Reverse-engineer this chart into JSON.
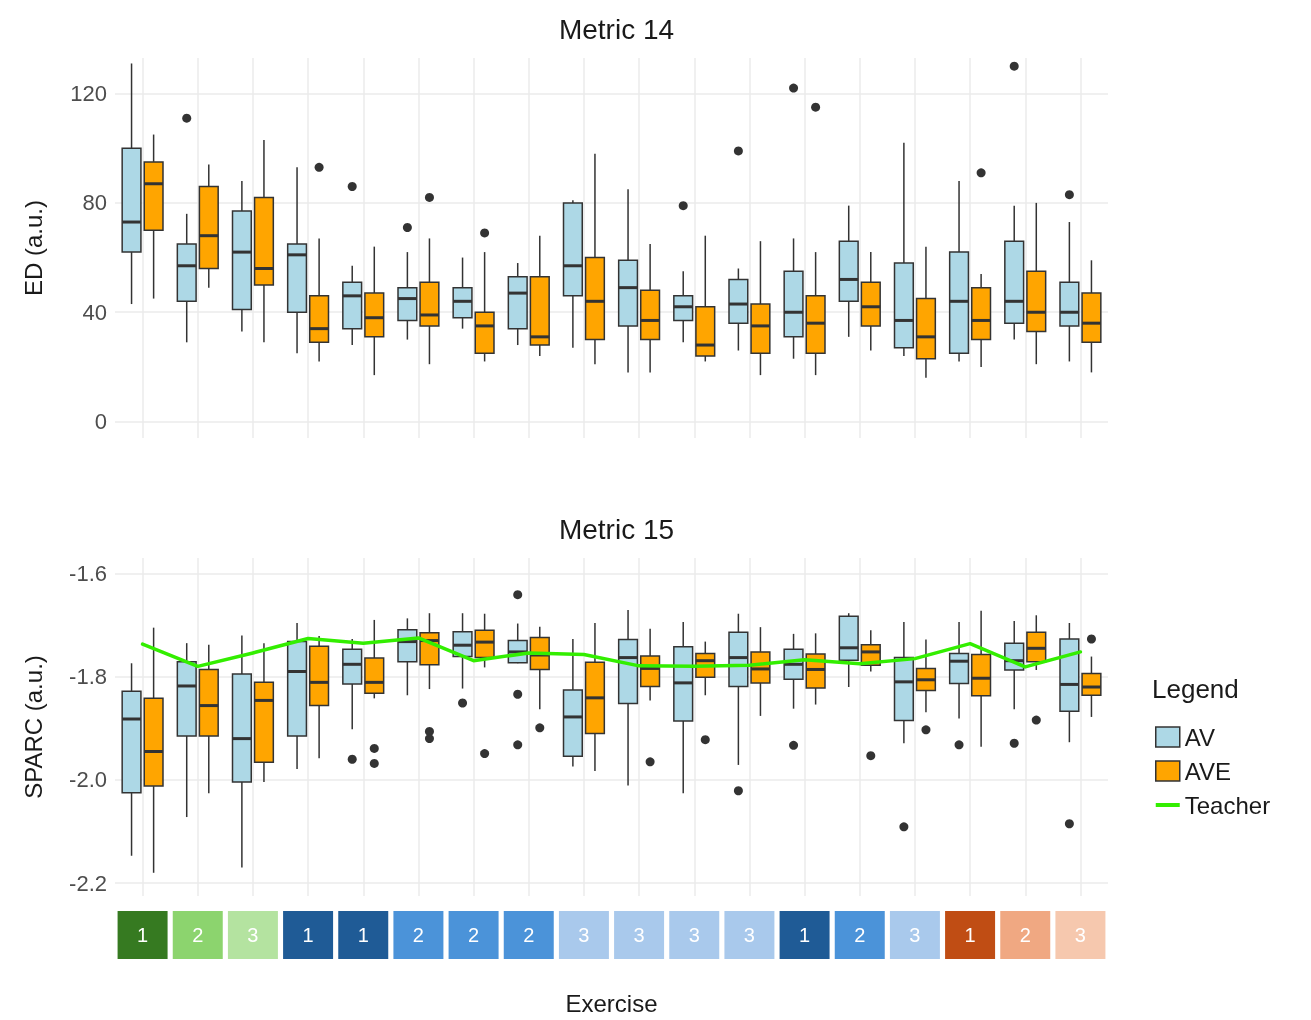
{
  "chart_data": [
    {
      "type": "box",
      "title": "Metric 14",
      "ylabel": "ED (a.u.)",
      "categories": [
        "1",
        "2",
        "3",
        "1",
        "1",
        "2",
        "2",
        "2",
        "3",
        "3",
        "3",
        "3",
        "1",
        "2",
        "3",
        "1",
        "2",
        "3"
      ],
      "ylim": [
        -6,
        133
      ],
      "yticks": [
        0,
        40,
        80,
        120
      ],
      "grid": true,
      "tick_labels": "y",
      "series": [
        {
          "color": "#add8e6",
          "boxes": [
            {
              "low": 43,
              "q1": 62,
              "median": 73,
              "q3": 100,
              "high": 131
            },
            {
              "low": 29,
              "q1": 44,
              "median": 57,
              "q3": 65,
              "high": 76,
              "outliers": [
                111
              ]
            },
            {
              "low": 33,
              "q1": 41,
              "median": 62,
              "q3": 77,
              "high": 88
            },
            {
              "low": 25,
              "q1": 40,
              "median": 61,
              "q3": 65,
              "high": 93
            },
            {
              "low": 28,
              "q1": 34,
              "median": 46,
              "q3": 51,
              "high": 57,
              "outliers": [
                86
              ]
            },
            {
              "low": 30,
              "q1": 37,
              "median": 45,
              "q3": 49,
              "high": 62,
              "outliers": [
                71
              ]
            },
            {
              "low": 34,
              "q1": 38,
              "median": 44,
              "q3": 49,
              "high": 60
            },
            {
              "low": 28,
              "q1": 34,
              "median": 47,
              "q3": 53,
              "high": 58
            },
            {
              "low": 27,
              "q1": 46,
              "median": 57,
              "q3": 80,
              "high": 81
            },
            {
              "low": 18,
              "q1": 35,
              "median": 49,
              "q3": 59,
              "high": 85
            },
            {
              "low": 29,
              "q1": 37,
              "median": 42,
              "q3": 46,
              "high": 55,
              "outliers": [
                79
              ]
            },
            {
              "low": 26,
              "q1": 36,
              "median": 43,
              "q3": 52,
              "high": 56,
              "outliers": [
                99
              ]
            },
            {
              "low": 23,
              "q1": 31,
              "median": 40,
              "q3": 55,
              "high": 67,
              "outliers": [
                122
              ]
            },
            {
              "low": 31,
              "q1": 44,
              "median": 52,
              "q3": 66,
              "high": 79
            },
            {
              "low": 24,
              "q1": 27,
              "median": 37,
              "q3": 58,
              "high": 102
            },
            {
              "low": 22,
              "q1": 25,
              "median": 44,
              "q3": 62,
              "high": 88
            },
            {
              "low": 30,
              "q1": 36,
              "median": 44,
              "q3": 66,
              "high": 79,
              "outliers": [
                130
              ]
            },
            {
              "low": 22,
              "q1": 35,
              "median": 40,
              "q3": 51,
              "high": 73,
              "outliers": [
                83
              ]
            }
          ]
        },
        {
          "color": "#ffa500",
          "boxes": [
            {
              "low": 45,
              "q1": 70,
              "median": 87,
              "q3": 95,
              "high": 105
            },
            {
              "low": 49,
              "q1": 56,
              "median": 68,
              "q3": 86,
              "high": 94
            },
            {
              "low": 29,
              "q1": 50,
              "median": 56,
              "q3": 82,
              "high": 103
            },
            {
              "low": 22,
              "q1": 29,
              "median": 34,
              "q3": 46,
              "high": 67,
              "outliers": [
                93
              ]
            },
            {
              "low": 17,
              "q1": 31,
              "median": 38,
              "q3": 47,
              "high": 64
            },
            {
              "low": 21,
              "q1": 35,
              "median": 39,
              "q3": 51,
              "high": 67,
              "outliers": [
                82
              ]
            },
            {
              "low": 22,
              "q1": 25,
              "median": 35,
              "q3": 40,
              "high": 62,
              "outliers": [
                69
              ]
            },
            {
              "low": 24,
              "q1": 28,
              "median": 31,
              "q3": 53,
              "high": 68
            },
            {
              "low": 21,
              "q1": 30,
              "median": 44,
              "q3": 60,
              "high": 98
            },
            {
              "low": 18,
              "q1": 30,
              "median": 37,
              "q3": 48,
              "high": 65
            },
            {
              "low": 22,
              "q1": 24,
              "median": 28,
              "q3": 42,
              "high": 68
            },
            {
              "low": 17,
              "q1": 25,
              "median": 35,
              "q3": 43,
              "high": 66
            },
            {
              "low": 17,
              "q1": 25,
              "median": 36,
              "q3": 46,
              "high": 62,
              "outliers": [
                115
              ]
            },
            {
              "low": 26,
              "q1": 35,
              "median": 42,
              "q3": 51,
              "high": 62
            },
            {
              "low": 16,
              "q1": 23,
              "median": 31,
              "q3": 45,
              "high": 64
            },
            {
              "low": 20,
              "q1": 30,
              "median": 37,
              "q3": 49,
              "high": 54,
              "outliers": [
                91
              ]
            },
            {
              "low": 21,
              "q1": 33,
              "median": 40,
              "q3": 55,
              "high": 80
            },
            {
              "low": 18,
              "q1": 29,
              "median": 36,
              "q3": 47,
              "high": 59
            }
          ]
        }
      ]
    },
    {
      "type": "box",
      "title": "Metric 15",
      "ylabel": "SPARC (a.u.)",
      "xlabel": "Exercise",
      "legend_title": "Legend",
      "legend": "right",
      "marker": "none",
      "categories": [
        "1",
        "2",
        "3",
        "1",
        "1",
        "2",
        "2",
        "2",
        "3",
        "3",
        "3",
        "3",
        "1",
        "2",
        "3",
        "1",
        "2",
        "3"
      ],
      "ylim": [
        -2.225,
        -1.57
      ],
      "yticks": [
        -2.2,
        {
          "value": -2,
          "label": "-2.0"
        },
        -1.8,
        -1.6
      ],
      "grid": true,
      "series": [
        {
          "name": "AV",
          "color": "#add8e6",
          "boxes": [
            {
              "low": -2.147,
              "q1": -2.025,
              "median": -1.882,
              "q3": -1.828,
              "high": -1.774
            },
            {
              "low": -2.072,
              "q1": -1.915,
              "median": -1.818,
              "q3": -1.771,
              "high": -1.735
            },
            {
              "low": -2.17,
              "q1": -2.004,
              "median": -1.92,
              "q3": -1.795,
              "high": -1.72
            },
            {
              "low": -1.979,
              "q1": -1.915,
              "median": -1.79,
              "q3": -1.732,
              "high": -1.696
            },
            {
              "low": -1.902,
              "q1": -1.814,
              "median": -1.776,
              "q3": -1.747,
              "high": -1.727,
              "outliers": [
                -1.96
              ]
            },
            {
              "low": -1.836,
              "q1": -1.771,
              "median": -1.732,
              "q3": -1.709,
              "high": -1.687
            },
            {
              "low": -1.823,
              "q1": -1.761,
              "median": -1.739,
              "q3": -1.713,
              "high": -1.677,
              "outliers": [
                -1.851
              ]
            },
            {
              "low": -1.774,
              "q1": -1.773,
              "median": -1.752,
              "q3": -1.73,
              "high": -1.697,
              "outliers": [
                -1.641,
                -1.834,
                -1.932
              ]
            },
            {
              "low": -1.974,
              "q1": -1.954,
              "median": -1.878,
              "q3": -1.826,
              "high": -1.727
            },
            {
              "low": -2.011,
              "q1": -1.852,
              "median": -1.763,
              "q3": -1.728,
              "high": -1.671
            },
            {
              "low": -2.026,
              "q1": -1.886,
              "median": -1.812,
              "q3": -1.742,
              "high": -1.694
            },
            {
              "low": -1.971,
              "q1": -1.819,
              "median": -1.763,
              "q3": -1.714,
              "high": -1.678,
              "outliers": [
                -2.021
              ]
            },
            {
              "low": -1.862,
              "q1": -1.805,
              "median": -1.776,
              "q3": -1.747,
              "high": -1.717,
              "outliers": [
                -1.933
              ]
            },
            {
              "low": -1.82,
              "q1": -1.768,
              "median": -1.744,
              "q3": -1.683,
              "high": -1.677
            },
            {
              "low": -1.929,
              "q1": -1.885,
              "median": -1.81,
              "q3": -1.763,
              "high": -1.694,
              "outliers": [
                -2.091
              ]
            },
            {
              "low": -1.881,
              "q1": -1.813,
              "median": -1.77,
              "q3": -1.755,
              "high": -1.694,
              "outliers": [
                -1.932
              ]
            },
            {
              "low": -1.863,
              "q1": -1.787,
              "median": -1.769,
              "q3": -1.735,
              "high": -1.692,
              "outliers": [
                -1.929
              ]
            },
            {
              "low": -1.927,
              "q1": -1.867,
              "median": -1.815,
              "q3": -1.727,
              "high": -1.696,
              "outliers": [
                -2.085
              ]
            }
          ]
        },
        {
          "name": "AVE",
          "color": "#ffa500",
          "boxes": [
            {
              "low": -2.18,
              "q1": -2.012,
              "median": -1.945,
              "q3": -1.842,
              "high": -1.705
            },
            {
              "low": -2.026,
              "q1": -1.915,
              "median": -1.856,
              "q3": -1.786,
              "high": -1.738
            },
            {
              "low": -2.004,
              "q1": -1.966,
              "median": -1.846,
              "q3": -1.811,
              "high": -1.735
            },
            {
              "low": -1.958,
              "q1": -1.856,
              "median": -1.811,
              "q3": -1.741,
              "high": -1.721
            },
            {
              "low": -1.842,
              "q1": -1.832,
              "median": -1.811,
              "q3": -1.764,
              "high": -1.69,
              "outliers": [
                -1.939,
                -1.968
              ]
            },
            {
              "low": -1.824,
              "q1": -1.777,
              "median": -1.73,
              "q3": -1.715,
              "high": -1.677,
              "outliers": [
                -1.906,
                -1.92
              ]
            },
            {
              "low": -1.782,
              "q1": -1.763,
              "median": -1.733,
              "q3": -1.71,
              "high": -1.678,
              "outliers": [
                -1.949
              ]
            },
            {
              "low": -1.863,
              "q1": -1.786,
              "median": -1.758,
              "q3": -1.724,
              "high": -1.703,
              "outliers": [
                -1.899
              ]
            },
            {
              "low": -1.983,
              "q1": -1.91,
              "median": -1.841,
              "q3": -1.772,
              "high": -1.696
            },
            {
              "low": -1.846,
              "q1": -1.819,
              "median": -1.784,
              "q3": -1.76,
              "high": -1.707,
              "outliers": [
                -1.965
              ]
            },
            {
              "low": -1.836,
              "q1": -1.801,
              "median": -1.769,
              "q3": -1.755,
              "high": -1.732,
              "outliers": [
                -1.922
              ]
            },
            {
              "low": -1.876,
              "q1": -1.812,
              "median": -1.785,
              "q3": -1.752,
              "high": -1.704
            },
            {
              "low": -1.854,
              "q1": -1.822,
              "median": -1.786,
              "q3": -1.756,
              "high": -1.716
            },
            {
              "low": -1.79,
              "q1": -1.778,
              "median": -1.752,
              "q3": -1.738,
              "high": -1.71,
              "outliers": [
                -1.953
              ]
            },
            {
              "low": -1.869,
              "q1": -1.827,
              "median": -1.806,
              "q3": -1.784,
              "high": -1.728,
              "outliers": [
                -1.903
              ]
            },
            {
              "low": -1.936,
              "q1": -1.837,
              "median": -1.803,
              "q3": -1.757,
              "high": -1.672
            },
            {
              "low": -1.787,
              "q1": -1.771,
              "median": -1.745,
              "q3": -1.714,
              "high": -1.681,
              "outliers": [
                -1.884
              ]
            },
            {
              "low": -1.878,
              "q1": -1.836,
              "median": -1.82,
              "q3": -1.794,
              "high": -1.761,
              "outliers": [
                -1.727
              ]
            }
          ]
        },
        {
          "name": "Teacher",
          "type": "line",
          "color": "#33ee00",
          "values": [
            -1.737,
            -1.78,
            -1.754,
            -1.726,
            -1.735,
            -1.725,
            -1.769,
            -1.754,
            -1.757,
            -1.779,
            -1.78,
            -1.778,
            -1.767,
            -1.775,
            -1.765,
            -1.736,
            -1.781,
            -1.752
          ]
        }
      ]
    }
  ]
}
